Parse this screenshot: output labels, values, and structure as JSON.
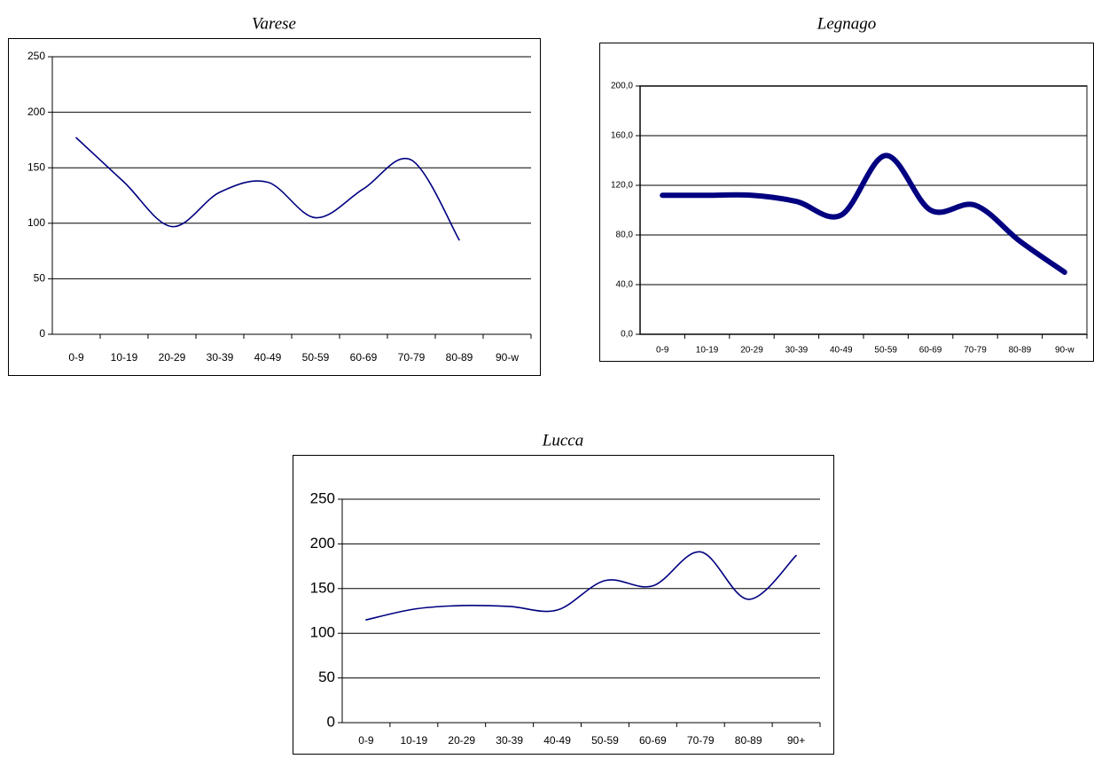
{
  "chart_data": [
    {
      "type": "line",
      "title": "Varese",
      "categories": [
        "0-9",
        "10-19",
        "20-29",
        "30-39",
        "40-49",
        "50-59",
        "60-69",
        "70-79",
        "80-89",
        "90-w"
      ],
      "values": [
        177,
        137,
        97,
        128,
        137,
        105,
        131,
        157,
        85,
        null
      ],
      "color": "#000080",
      "line_width": 1.6,
      "ylim": [
        0,
        250
      ],
      "yticks": [
        0,
        50,
        100,
        150,
        200,
        250
      ],
      "grid": true
    },
    {
      "type": "line",
      "title": "Legnago",
      "categories": [
        "0-9",
        "10-19",
        "20-29",
        "30-39",
        "40-49",
        "50-59",
        "60-69",
        "70-79",
        "80-89",
        "90-w"
      ],
      "values": [
        112,
        112,
        112,
        107,
        96,
        144,
        100,
        104,
        75,
        50
      ],
      "color": "#000080",
      "line_width": 6,
      "ylim": [
        0,
        200
      ],
      "yticks": [
        {
          "value": 0,
          "label": "0,0"
        },
        {
          "value": 40,
          "label": "40,0"
        },
        {
          "value": 80,
          "label": "80,0"
        },
        {
          "value": 120,
          "label": "120,0"
        },
        {
          "value": 160,
          "label": "160,0"
        },
        {
          "value": 200,
          "label": "200,0"
        }
      ],
      "grid": true
    },
    {
      "type": "line",
      "title": "Lucca",
      "categories": [
        "0-9",
        "10-19",
        "20-29",
        "30-39",
        "40-49",
        "50-59",
        "60-69",
        "70-79",
        "80-89",
        "90+"
      ],
      "values": [
        115,
        127,
        131,
        130,
        126,
        159,
        153,
        191,
        138,
        187
      ],
      "color": "#000080",
      "line_width": 1.6,
      "ylim": [
        0,
        250
      ],
      "yticks": [
        0,
        50,
        100,
        150,
        200,
        250
      ],
      "grid": true
    }
  ]
}
